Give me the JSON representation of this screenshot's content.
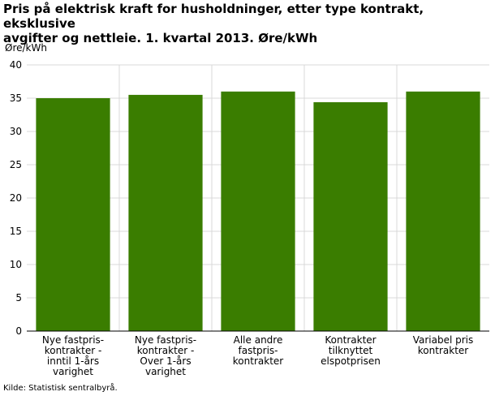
{
  "title_lines": [
    "Pris på elektrisk kraft for husholdninger, etter type kontrakt, eksklusive",
    "avgifter og nettleie. 1. kvartal 2013. Øre/kWh"
  ],
  "unit_label": "Øre/kWh",
  "source": "Kilde: Statistisk sentralbyrå.",
  "colors": {
    "bar": "#3a7d00",
    "grid": "#d9d9d9",
    "axis": "#000000"
  },
  "chart_data": {
    "type": "bar",
    "title": "Pris på elektrisk kraft for husholdninger, etter type kontrakt, eksklusive avgifter og nettleie. 1. kvartal 2013. Øre/kWh",
    "ylabel": "Øre/kWh",
    "ylim": [
      0,
      40
    ],
    "yticks": [
      0,
      5,
      10,
      15,
      20,
      25,
      30,
      35,
      40
    ],
    "grid": true,
    "categories": [
      [
        "Nye fastpris-",
        "kontrakter -",
        "inntil 1-års",
        "varighet"
      ],
      [
        "Nye fastpris-",
        "kontrakter -",
        "Over 1-års",
        "varighet"
      ],
      [
        "Alle andre",
        "fastpris-",
        "kontrakter"
      ],
      [
        "Kontrakter",
        "tilknyttet",
        "elspotprisen"
      ],
      [
        "Variabel pris",
        "kontrakter"
      ]
    ],
    "values": [
      35.0,
      35.5,
      36.0,
      34.4,
      36.0
    ]
  }
}
